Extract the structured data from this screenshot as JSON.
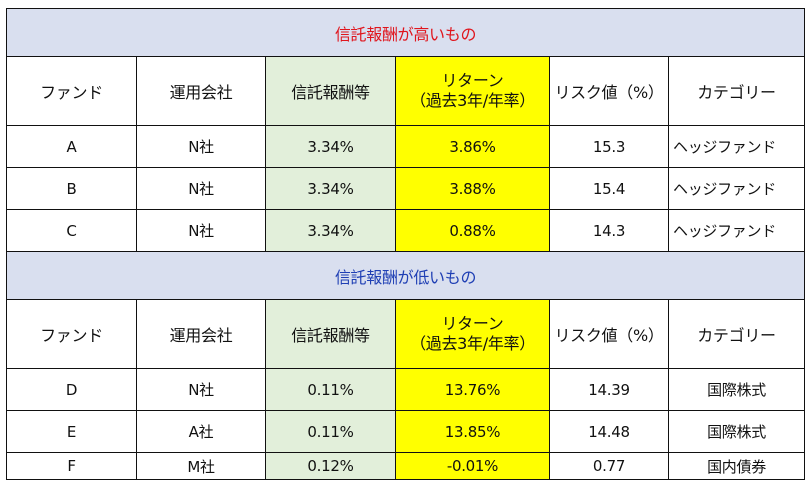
{
  "columns": {
    "fund": "ファンド",
    "company": "運用会社",
    "fee": "信託報酬等",
    "return_line1": "リターン",
    "return_line2": "（過去3年/年率）",
    "risk": "リスク値（%）",
    "category": "カテゴリー"
  },
  "sections": [
    {
      "title": "信託報酬が高いもの",
      "title_color": "#e0151d",
      "rows": [
        {
          "fund": "A",
          "company": "N社",
          "fee": "3.34%",
          "return": "3.86%",
          "risk": "15.3",
          "category": "ヘッジファンド"
        },
        {
          "fund": "B",
          "company": "N社",
          "fee": "3.34%",
          "return": "3.88%",
          "risk": "15.4",
          "category": "ヘッジファンド"
        },
        {
          "fund": "C",
          "company": "N社",
          "fee": "3.34%",
          "return": "0.88%",
          "risk": "14.3",
          "category": "ヘッジファンド"
        }
      ]
    },
    {
      "title": "信託報酬が低いもの",
      "title_color": "#1f3fb4",
      "rows": [
        {
          "fund": "D",
          "company": "N社",
          "fee": "0.11%",
          "return": "13.76%",
          "risk": "14.39",
          "category": "国際株式"
        },
        {
          "fund": "E",
          "company": "A社",
          "fee": "0.11%",
          "return": "13.85%",
          "risk": "14.48",
          "category": "国際株式"
        },
        {
          "fund": "F",
          "company": "M社",
          "fee": "0.12%",
          "return": "-0.01%",
          "risk": "0.77",
          "category": "国内債券"
        }
      ]
    }
  ],
  "colors": {
    "section_bg": "#d9dfef",
    "fee_bg": "#e2efda",
    "return_bg": "#ffff00"
  }
}
